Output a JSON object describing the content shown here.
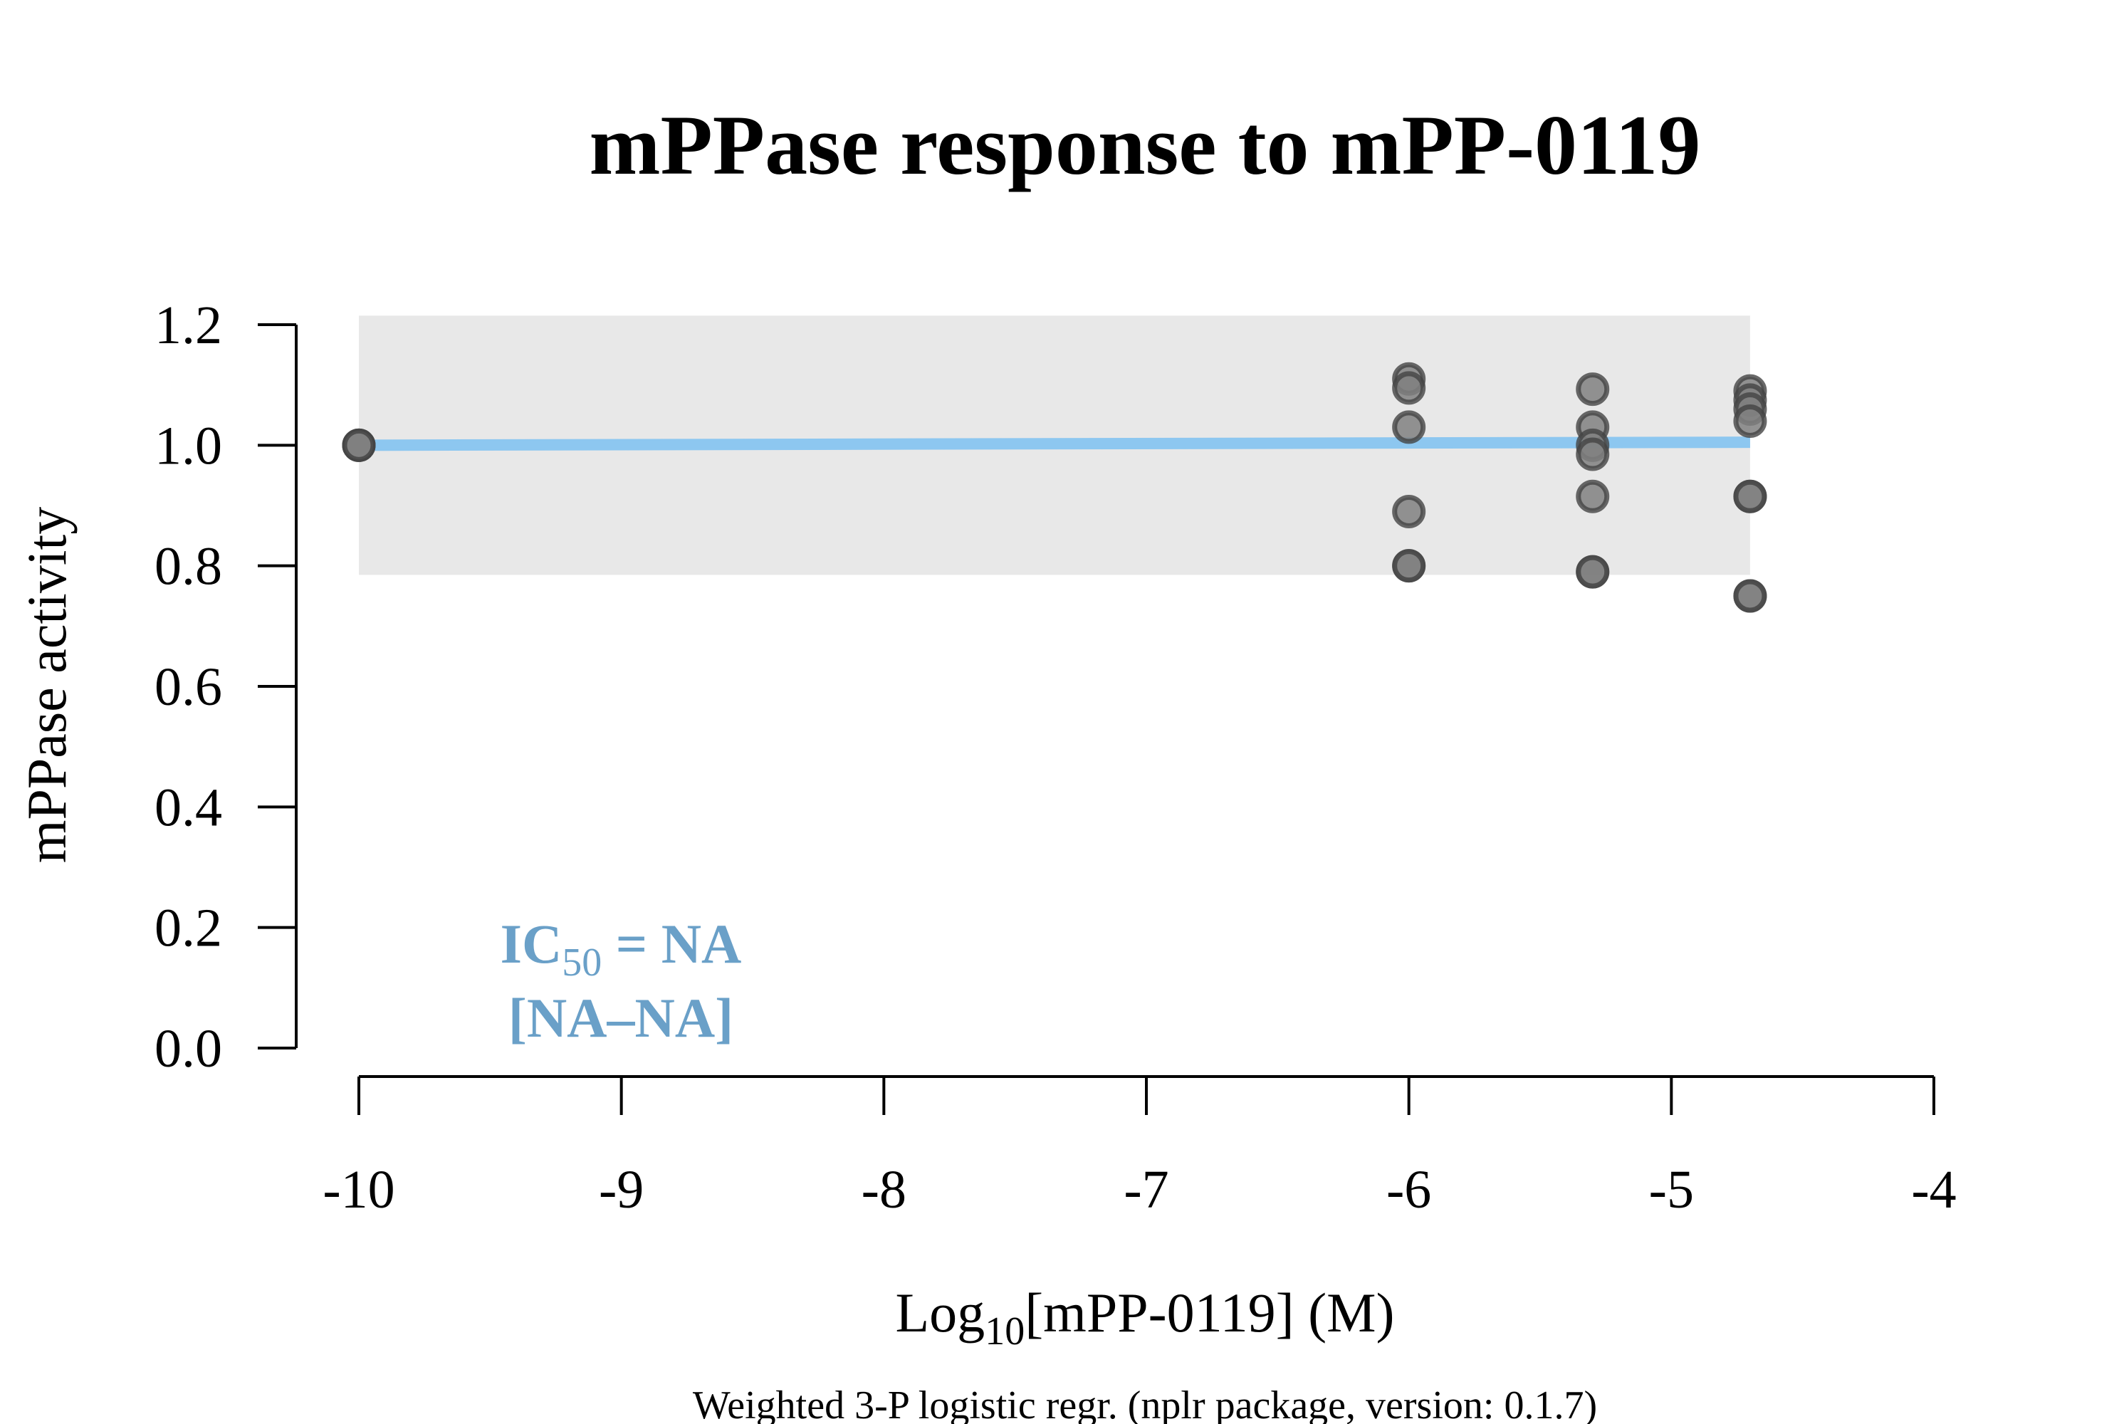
{
  "chart_data": {
    "type": "scatter",
    "title": "mPPase response to mPP-0119",
    "xlabel": {
      "prefix": "Log",
      "subscript": "10",
      "suffix": "[mPP-0119] (M)"
    },
    "ylabel": "mPPase activity",
    "footnote": "Weighted 3-P logistic regr. (nplr package, version: 0.1.7)",
    "xlim": [
      -10,
      -4
    ],
    "ylim": [
      0,
      1.2
    ],
    "x_ticks": [
      -10,
      -9,
      -8,
      -7,
      -6,
      -5,
      -4
    ],
    "y_ticks": [
      0.0,
      0.2,
      0.4,
      0.6,
      0.8,
      1.0,
      1.2
    ],
    "y_tick_labels": [
      "0.0",
      "0.2",
      "0.4",
      "0.6",
      "0.8",
      "1.0",
      "1.2"
    ],
    "x_tick_labels": [
      "-10",
      "-9",
      "-8",
      "-7",
      "-6",
      "-5",
      "-4"
    ],
    "series": [
      {
        "kind": "points",
        "x": [
          -10,
          -10,
          -10,
          -6,
          -6,
          -6,
          -6,
          -6,
          -6,
          -5.3,
          -5.3,
          -5.3,
          -5.3,
          -5.3,
          -5.3,
          -5.3,
          -4.7,
          -4.7,
          -4.7,
          -4.7,
          -4.7,
          -4.7,
          -4.7,
          -4.7
        ],
        "y": [
          1.0,
          1.0,
          1.0,
          1.11,
          1.095,
          1.03,
          0.89,
          0.8,
          0.8,
          1.093,
          1.03,
          1.0,
          0.985,
          0.915,
          0.79,
          0.79,
          1.09,
          1.075,
          1.06,
          1.04,
          0.915,
          0.915,
          0.75,
          0.75
        ]
      },
      {
        "kind": "fit",
        "x": [
          -10,
          -4.7
        ],
        "y": [
          1.0,
          1.005
        ]
      }
    ],
    "confidence_band": {
      "x": [
        -10,
        -4.7
      ],
      "y_low": 0.785,
      "y_high": 1.215
    },
    "annotation": {
      "line1_main": "IC",
      "line1_sub": "50",
      "line1_rest": " = NA",
      "line2": "[NA–NA]"
    },
    "colors": {
      "fit_line": "#8dc7f0",
      "band": "#e8e8e8",
      "point_fill": "#808080",
      "point_stroke": "#444444",
      "annotation": "#6aa0c8"
    }
  }
}
